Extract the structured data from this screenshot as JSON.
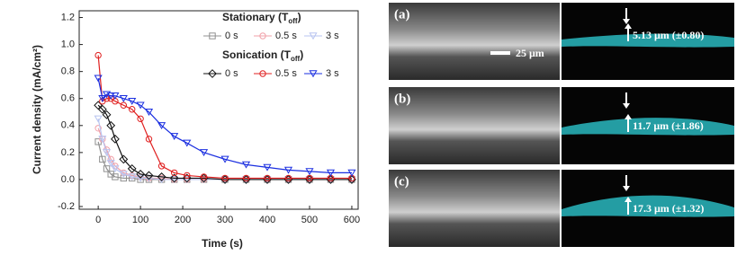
{
  "chart_data": {
    "type": "line",
    "x_label": "Time (s)",
    "y_label": "Current density (mA/cm²)",
    "x": [
      0,
      10,
      20,
      30,
      40,
      60,
      80,
      100,
      120,
      150,
      180,
      210,
      250,
      300,
      350,
      400,
      450,
      500,
      550,
      600
    ],
    "xlim": [
      -45,
      615
    ],
    "xticks": [
      0,
      100,
      200,
      300,
      400,
      500,
      600
    ],
    "ylim": [
      -0.22,
      1.25
    ],
    "yticks": [
      -0.2,
      {
        "value": 0,
        "label": "0.0"
      },
      0.2,
      0.4,
      0.6,
      0.8,
      {
        "value": 1,
        "label": "1.0"
      },
      1.2
    ],
    "series_groups": [
      {
        "title_parts": [
          "Stationary (T",
          "off",
          ")"
        ],
        "series": [
          {
            "name": "0 s",
            "color": "#909090",
            "marker": "square",
            "values": [
              0.28,
              0.15,
              0.08,
              0.04,
              0.02,
              0.01,
              0.01,
              0,
              0,
              0,
              0,
              0,
              0,
              0,
              0,
              0,
              0,
              0,
              0,
              0
            ]
          },
          {
            "name": "0.5 s",
            "color": "#f0a0a8",
            "marker": "circle",
            "values": [
              0.38,
              0.3,
              0.22,
              0.15,
              0.1,
              0.05,
              0.03,
              0.02,
              0.01,
              0.01,
              0,
              0,
              0,
              0,
              0,
              0,
              0,
              0,
              0,
              0
            ]
          },
          {
            "name": "3 s",
            "color": "#b8c4f0",
            "marker": "triangle",
            "values": [
              0.45,
              0.3,
              0.2,
              0.12,
              0.08,
              0.04,
              0.02,
              0.01,
              0.01,
              0,
              0,
              0,
              0,
              0,
              0,
              0,
              0,
              0,
              0,
              0
            ]
          }
        ]
      },
      {
        "title_parts": [
          "Sonication (T",
          "off",
          ")"
        ],
        "series": [
          {
            "name": "0 s",
            "color": "#111111",
            "marker": "diamond",
            "values": [
              0.55,
              0.52,
              0.48,
              0.4,
              0.3,
              0.15,
              0.08,
              0.04,
              0.03,
              0.02,
              0.01,
              0.01,
              0.01,
              0,
              0,
              0,
              0,
              0,
              0,
              0
            ]
          },
          {
            "name": "0.5 s",
            "color": "#e02020",
            "marker": "circle",
            "values": [
              0.92,
              0.58,
              0.6,
              0.6,
              0.58,
              0.55,
              0.52,
              0.45,
              0.3,
              0.1,
              0.05,
              0.03,
              0.02,
              0.01,
              0.01,
              0.01,
              0.01,
              0.01,
              0.01,
              0.01
            ]
          },
          {
            "name": "3 s",
            "color": "#1a2ee0",
            "marker": "triangle",
            "values": [
              0.75,
              0.6,
              0.63,
              0.62,
              0.62,
              0.6,
              0.58,
              0.55,
              0.5,
              0.4,
              0.32,
              0.27,
              0.2,
              0.15,
              0.11,
              0.09,
              0.07,
              0.06,
              0.05,
              0.05
            ]
          }
        ]
      }
    ]
  },
  "images": {
    "scale_bar": "25 μm",
    "panels": [
      {
        "label": "(a)",
        "thickness": "5.13 μm (±0.80)"
      },
      {
        "label": "(b)",
        "thickness": "11.7 μm (±1.86)"
      },
      {
        "label": "(c)",
        "thickness": "17.3 μm (±1.32)"
      }
    ]
  }
}
